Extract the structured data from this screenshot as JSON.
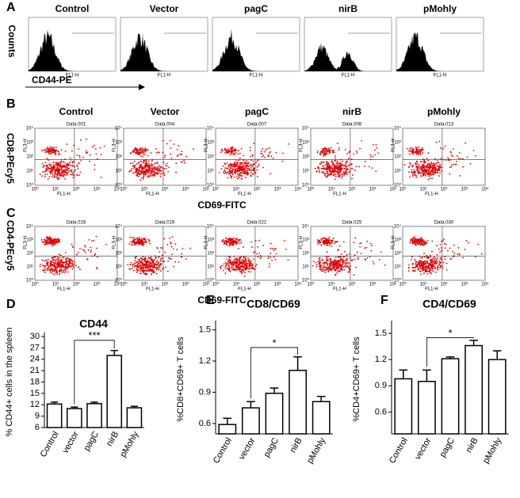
{
  "panels": {
    "A": {
      "label": "A",
      "titles": [
        "Control",
        "Vector",
        "pagC",
        "nirB",
        "pMohly"
      ],
      "y_label": "Counts",
      "x_label": "CD44-PE"
    },
    "B": {
      "label": "B",
      "titles": [
        "Control",
        "Vector",
        "pagC",
        "nirB",
        "pMohly"
      ],
      "y_label": "CD8-PEcy5",
      "x_label": "CD69-FITC",
      "plot_labels": [
        "Data.001",
        "Data.004",
        "Data.007",
        "Data.008",
        "Data.013"
      ]
    },
    "C": {
      "label": "C",
      "y_label": "CD4-PEcy5",
      "x_label": "CD69-FITC",
      "plot_labels": [
        "Data.016",
        "Data.019",
        "Data.022",
        "Data.025",
        "Data.030"
      ]
    }
  },
  "flow_axis": {
    "x": "FL1-H",
    "y": "FL3-H",
    "ticks": [
      "10⁰",
      "10¹",
      "10²",
      "10³",
      "10⁴"
    ]
  },
  "chart_data": [
    {
      "type": "bar",
      "panel": "D",
      "title": "CD44",
      "y_label": "% CD44+ cells in the spleen",
      "categories": [
        "Control",
        "vector",
        "pagC",
        "nirB",
        "pMohly"
      ],
      "values": [
        12.2,
        11.0,
        12.3,
        25.0,
        11.2
      ],
      "errors": [
        0.5,
        0.4,
        0.4,
        1.3,
        0.4
      ],
      "ylim": [
        6,
        30
      ],
      "yticks": [
        6,
        9,
        12,
        15,
        18,
        21,
        24,
        27,
        30
      ],
      "annotation": "***"
    },
    {
      "type": "bar",
      "panel": "E",
      "title": "CD8/CD69",
      "y_label": "%CD8+CD69+ T cells",
      "categories": [
        "Control",
        "vector",
        "pagC",
        "nirB",
        "pMohly"
      ],
      "values": [
        0.59,
        0.75,
        0.89,
        1.11,
        0.81
      ],
      "errors": [
        0.06,
        0.06,
        0.05,
        0.13,
        0.05
      ],
      "ylim": [
        0.5,
        1.55
      ],
      "yticks": [
        0.6,
        0.9,
        1.2,
        1.5
      ],
      "annotation": "*"
    },
    {
      "type": "bar",
      "panel": "F",
      "title": "CD4/CD69",
      "y_label": "%CD4+CD69+ T cells",
      "categories": [
        "Control",
        "vector",
        "pagC",
        "nirB",
        "pMohly"
      ],
      "values": [
        0.98,
        0.95,
        1.21,
        1.36,
        1.2
      ],
      "errors": [
        0.1,
        0.13,
        0.02,
        0.06,
        0.1
      ],
      "ylim": [
        0.35,
        1.6
      ],
      "yticks": [
        0.6,
        0.9,
        1.2,
        1.5
      ],
      "annotation": "*"
    }
  ]
}
